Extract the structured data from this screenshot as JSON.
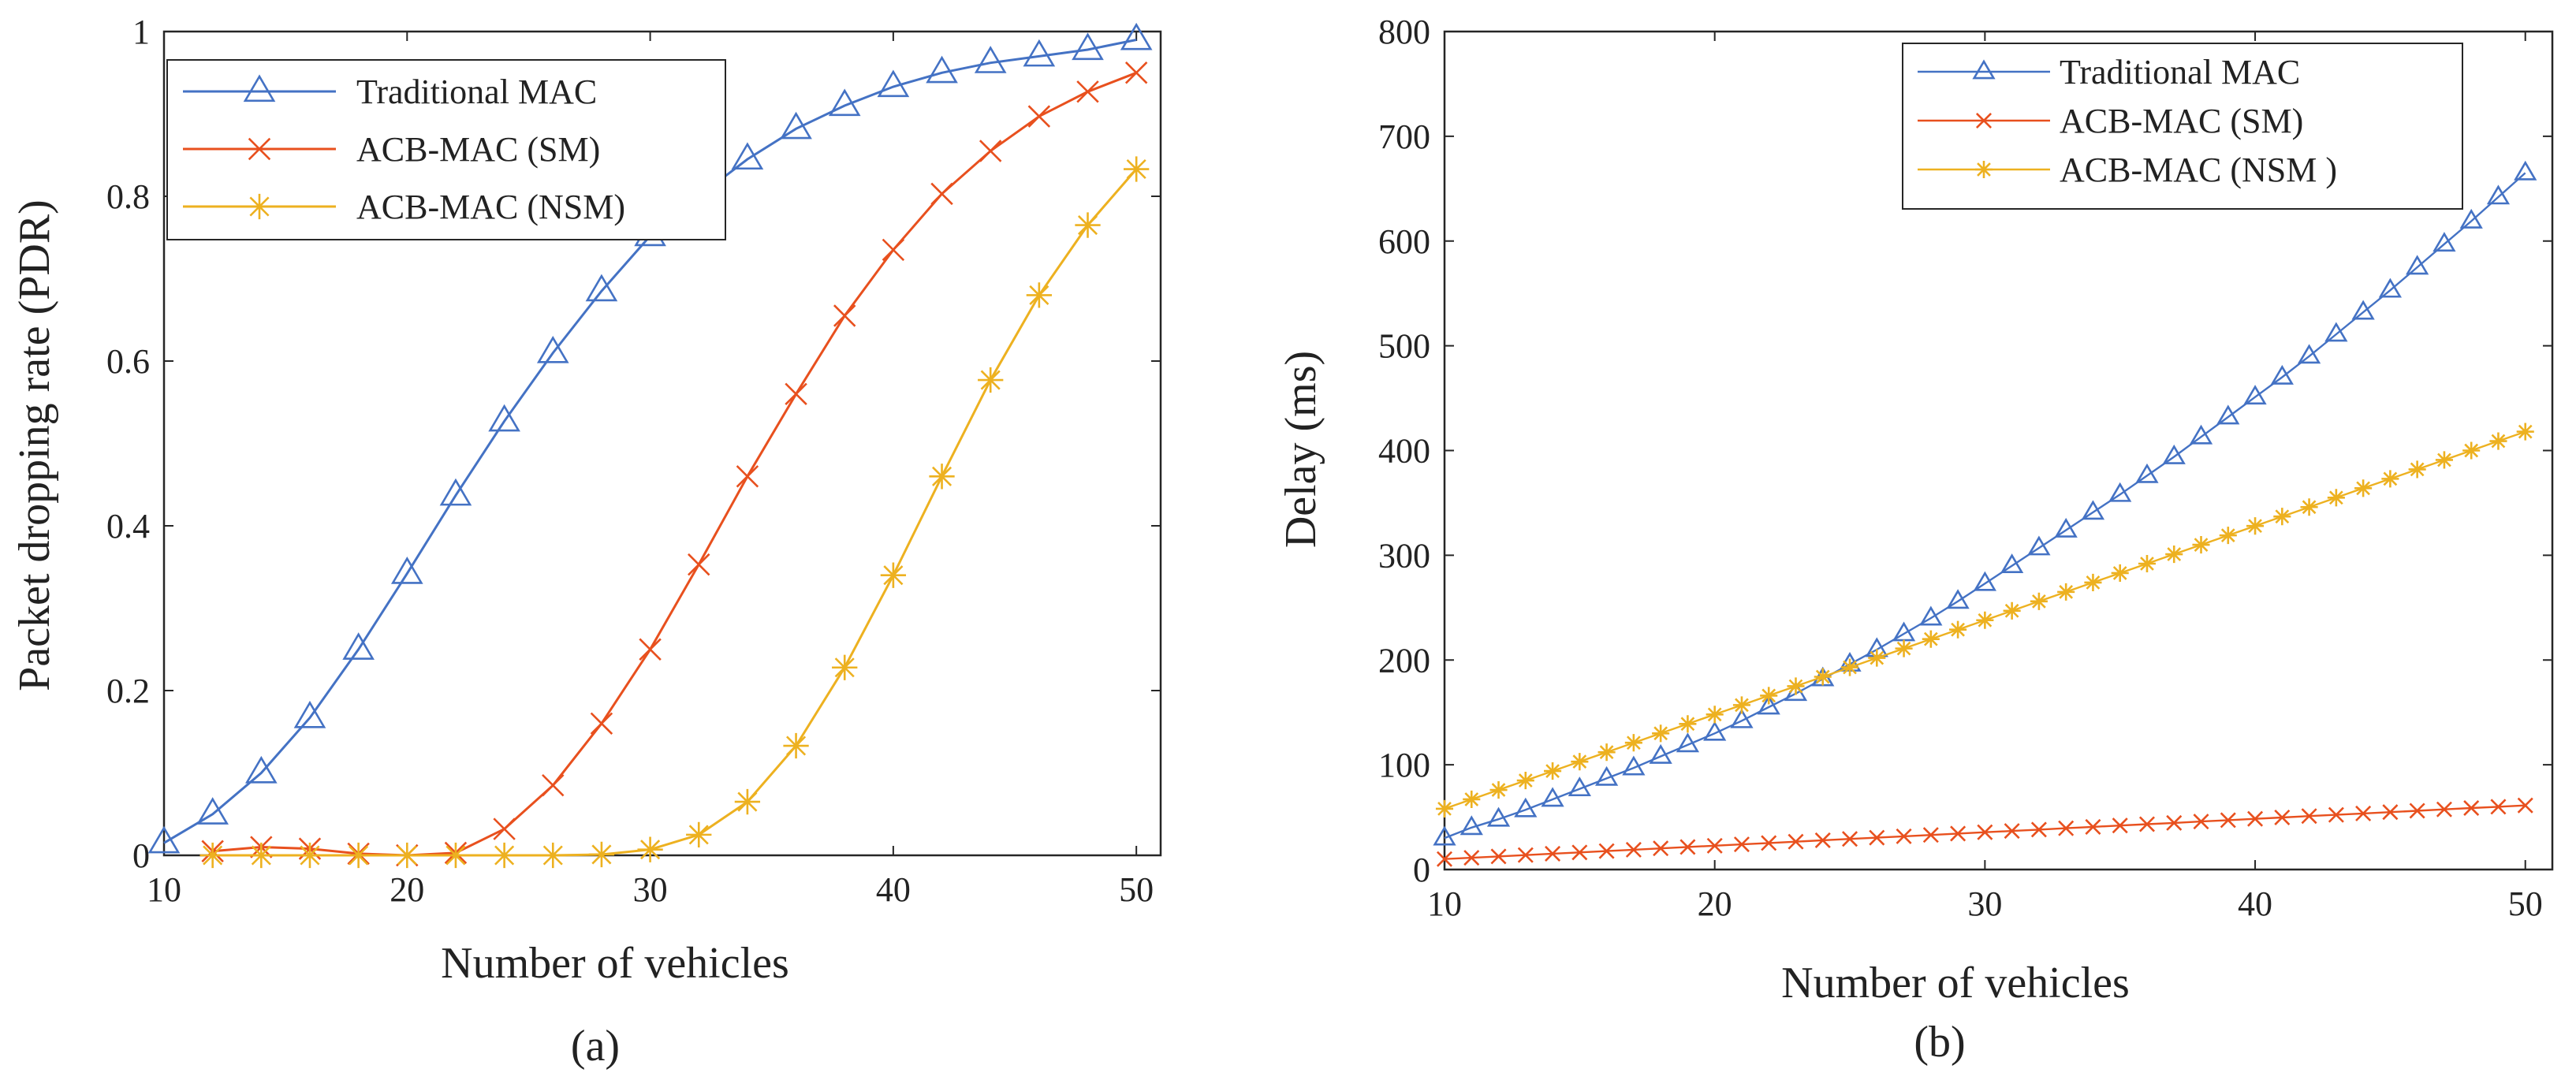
{
  "chart_data": [
    {
      "type": "line",
      "caption": "(a)",
      "xlabel": "Number of vehicles",
      "ylabel": "Packet dropping rate (PDR)",
      "xlim": [
        10,
        51
      ],
      "ylim": [
        0,
        1
      ],
      "xticks": [
        10,
        20,
        30,
        40,
        50
      ],
      "yticks": [
        0,
        0.2,
        0.4,
        0.6,
        0.8,
        1
      ],
      "ytick_labels": [
        "0",
        "0.2",
        "0.4",
        "0.6",
        "0.8",
        "1"
      ],
      "legend_position": "top-left",
      "grid": false,
      "series": [
        {
          "name": "Traditional MAC",
          "color": "#4472C4",
          "marker": "triangle",
          "x": [
            10,
            12,
            14,
            16,
            18,
            20,
            22,
            24,
            26,
            28,
            30,
            32,
            34,
            36,
            38,
            40,
            42,
            44,
            46,
            48,
            50
          ],
          "y": [
            0.015,
            0.05,
            0.1,
            0.167,
            0.25,
            0.342,
            0.437,
            0.527,
            0.61,
            0.685,
            0.752,
            0.8,
            0.845,
            0.882,
            0.91,
            0.933,
            0.95,
            0.962,
            0.97,
            0.978,
            0.99
          ]
        },
        {
          "name": "ACB-MAC (SM)",
          "color": "#E8501E",
          "marker": "x",
          "x": [
            12,
            14,
            16,
            18,
            20,
            22,
            24,
            26,
            28,
            30,
            32,
            34,
            36,
            38,
            40,
            42,
            44,
            46,
            48,
            50
          ],
          "y": [
            0.005,
            0.01,
            0.008,
            0.002,
            0.0,
            0.003,
            0.032,
            0.085,
            0.16,
            0.25,
            0.353,
            0.46,
            0.56,
            0.655,
            0.735,
            0.803,
            0.855,
            0.897,
            0.927,
            0.95
          ]
        },
        {
          "name": "ACB-MAC (NSM)",
          "color": "#EDB120",
          "marker": "star",
          "x": [
            12,
            14,
            16,
            18,
            20,
            22,
            24,
            26,
            28,
            30,
            32,
            34,
            36,
            38,
            40,
            42,
            44,
            46,
            48,
            50
          ],
          "y": [
            0,
            0,
            0,
            0,
            0,
            0,
            0,
            0,
            0.001,
            0.007,
            0.025,
            0.065,
            0.133,
            0.228,
            0.34,
            0.46,
            0.577,
            0.68,
            0.765,
            0.833
          ]
        }
      ]
    },
    {
      "type": "line",
      "caption": "(b)",
      "xlabel": "Number of vehicles",
      "ylabel": "Delay (ms)",
      "xlim": [
        10,
        51
      ],
      "ylim": [
        0,
        800
      ],
      "xticks": [
        10,
        20,
        30,
        40,
        50
      ],
      "yticks": [
        0,
        100,
        200,
        300,
        400,
        500,
        600,
        700,
        800
      ],
      "ytick_labels": [
        "0",
        "100",
        "200",
        "300",
        "400",
        "500",
        "600",
        "700",
        "800"
      ],
      "legend_position": "top-right",
      "grid": false,
      "series": [
        {
          "name": "Traditional MAC",
          "color": "#4472C4",
          "marker": "triangle",
          "x": [
            10,
            11,
            12,
            13,
            14,
            15,
            16,
            17,
            18,
            19,
            20,
            21,
            22,
            23,
            24,
            25,
            26,
            27,
            28,
            29,
            30,
            31,
            32,
            33,
            34,
            35,
            36,
            37,
            38,
            39,
            40,
            41,
            42,
            43,
            44,
            45,
            46,
            47,
            48,
            49,
            50
          ],
          "y": [
            30,
            40,
            48,
            57,
            67,
            77,
            87,
            97,
            108,
            119,
            130,
            142,
            155,
            168,
            182,
            196,
            210,
            225,
            240,
            256,
            273,
            290,
            307,
            324,
            341,
            358,
            376,
            394,
            413,
            432,
            451,
            470,
            490,
            511,
            532,
            553,
            575,
            597,
            619,
            642,
            665
          ]
        },
        {
          "name": "ACB-MAC (SM)",
          "color": "#E8501E",
          "marker": "x",
          "x": [
            10,
            11,
            12,
            13,
            14,
            15,
            16,
            17,
            18,
            19,
            20,
            21,
            22,
            23,
            24,
            25,
            26,
            27,
            28,
            29,
            30,
            31,
            32,
            33,
            34,
            35,
            36,
            37,
            38,
            39,
            40,
            41,
            42,
            43,
            44,
            45,
            46,
            47,
            48,
            49,
            50
          ],
          "y": [
            10,
            11.2,
            12.5,
            13.8,
            15.1,
            16.3,
            17.6,
            18.9,
            20.2,
            21.5,
            22.7,
            24,
            25.3,
            26.6,
            27.9,
            29.2,
            30.4,
            31.7,
            33,
            34.3,
            35.6,
            36.8,
            38.1,
            39.4,
            40.7,
            42,
            43.3,
            44.5,
            45.8,
            47.1,
            48.4,
            49.7,
            51,
            52.2,
            53.5,
            54.8,
            56.1,
            57.4,
            58.7,
            59.9,
            61.2
          ]
        },
        {
          "name": "ACB-MAC (NSM )",
          "color": "#EDB120",
          "marker": "star",
          "x": [
            10,
            11,
            12,
            13,
            14,
            15,
            16,
            17,
            18,
            19,
            20,
            21,
            22,
            23,
            24,
            25,
            26,
            27,
            28,
            29,
            30,
            31,
            32,
            33,
            34,
            35,
            36,
            37,
            38,
            39,
            40,
            41,
            42,
            43,
            44,
            45,
            46,
            47,
            48,
            49,
            50
          ],
          "y": [
            58,
            67,
            76,
            85,
            94,
            103,
            112,
            121,
            130,
            139,
            148,
            157,
            166,
            175,
            184,
            193,
            202,
            211,
            220,
            229,
            238,
            247,
            256,
            265,
            274,
            283,
            292,
            301,
            310,
            319,
            328,
            337,
            346,
            355,
            364,
            373,
            382,
            391,
            400,
            409,
            418
          ]
        }
      ]
    }
  ]
}
